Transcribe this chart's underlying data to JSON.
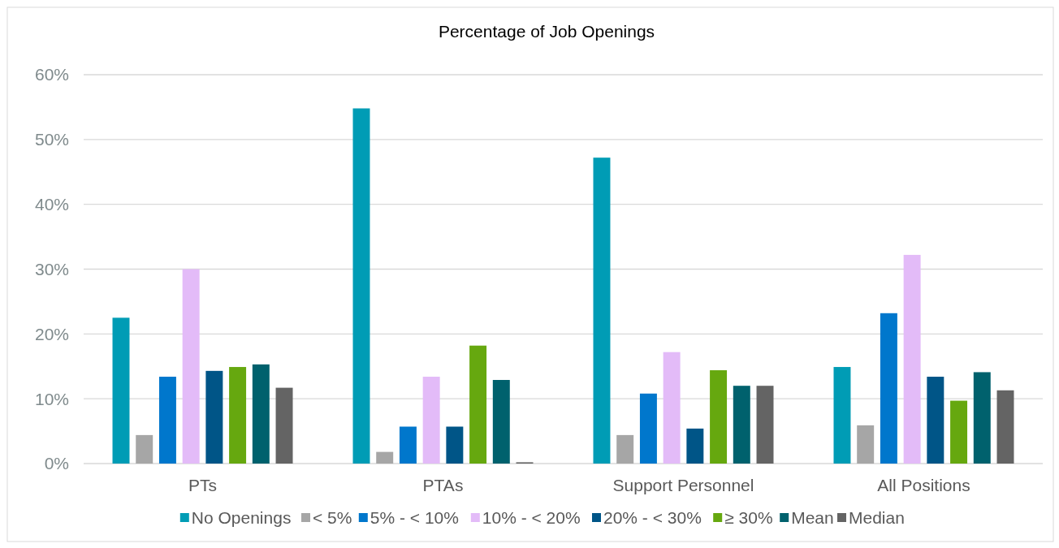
{
  "chart_data": {
    "type": "bar",
    "title": "Percentage of Job Openings",
    "categories": [
      "PTs",
      "PTAs",
      "Support Personnel",
      "All Positions"
    ],
    "series": [
      {
        "name": "No Openings",
        "color": "#009cb5",
        "values": [
          22.5,
          54.8,
          47.2,
          14.9
        ]
      },
      {
        "name": "< 5%",
        "color": "#a6a6a6",
        "values": [
          4.4,
          1.8,
          4.4,
          5.9
        ]
      },
      {
        "name": "5% - < 10%",
        "color": "#0077cc",
        "values": [
          13.4,
          5.7,
          10.8,
          23.2
        ]
      },
      {
        "name": "10% - < 20%",
        "color": "#e3bbf8",
        "values": [
          30.0,
          13.4,
          17.2,
          32.2
        ]
      },
      {
        "name": "20% - < 30%",
        "color": "#005587",
        "values": [
          14.3,
          5.7,
          5.4,
          13.4
        ]
      },
      {
        "name": "≥ 30%",
        "color": "#66a80f",
        "values": [
          14.9,
          18.2,
          14.4,
          9.7
        ]
      },
      {
        "name": "Mean",
        "color": "#00616d",
        "values": [
          15.3,
          12.9,
          12.0,
          14.1
        ]
      },
      {
        "name": "Median",
        "color": "#646464",
        "values": [
          11.7,
          0.2,
          12.0,
          11.3
        ]
      }
    ],
    "ylim": [
      0,
      60
    ],
    "yticks": [
      {
        "value": 0,
        "label": "0%"
      },
      {
        "value": 10,
        "label": "10%"
      },
      {
        "value": 20,
        "label": "20%"
      },
      {
        "value": 30,
        "label": "30%"
      },
      {
        "value": 40,
        "label": "40%"
      },
      {
        "value": 50,
        "label": "50%"
      },
      {
        "value": 60,
        "label": "60%"
      }
    ],
    "grid": "y",
    "legend": "bottom"
  }
}
